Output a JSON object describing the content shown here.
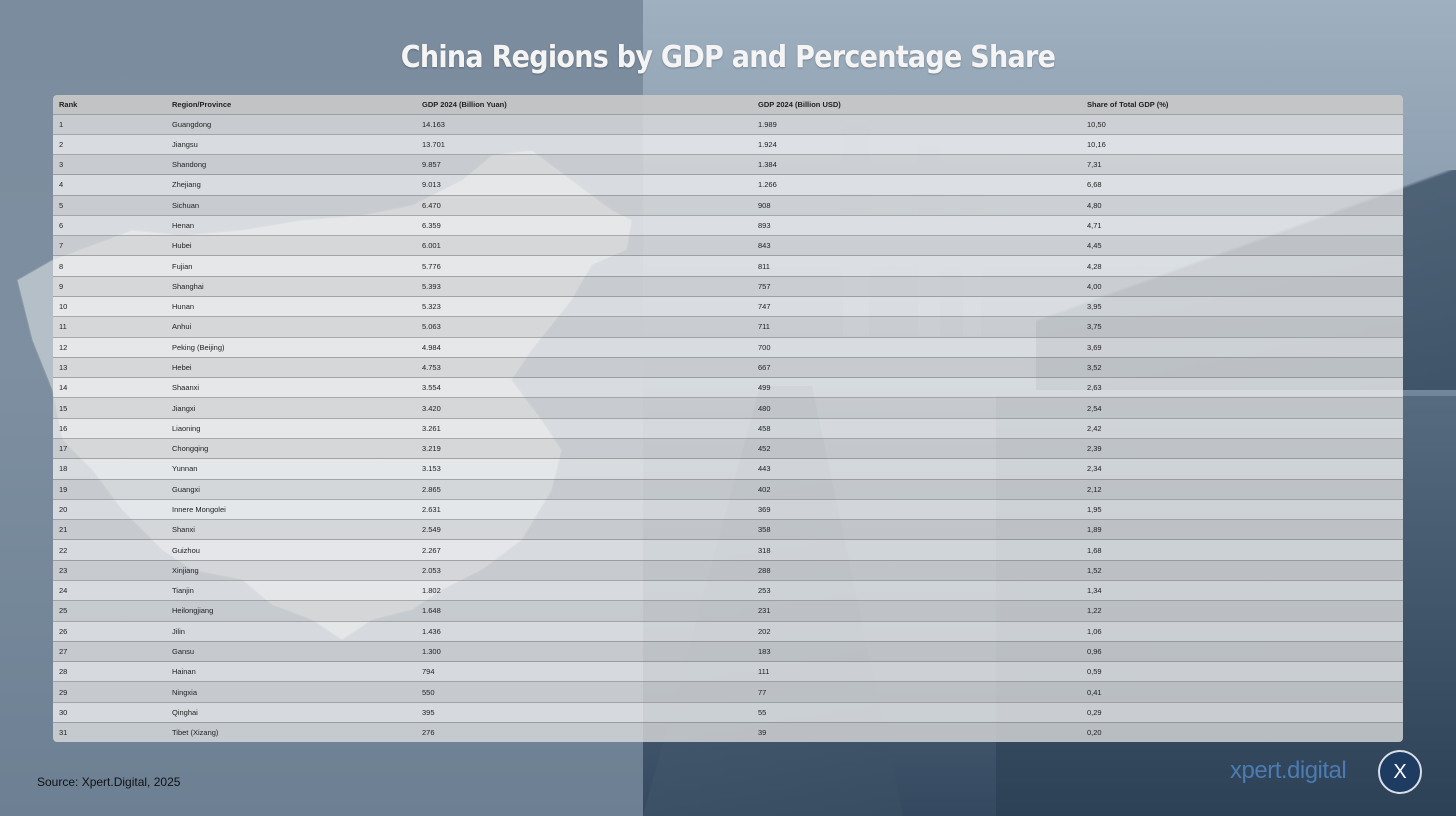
{
  "title": "China Regions by GDP and Percentage Share",
  "table": {
    "headers": [
      "Rank",
      "Region/Province",
      "GDP 2024 (Billion Yuan)",
      "GDP 2024 (Billion USD)",
      "Share of Total GDP (%)"
    ],
    "rows": [
      [
        "1",
        "Guangdong",
        "14.163",
        "1.989",
        "10,50"
      ],
      [
        "2",
        "Jiangsu",
        "13.701",
        "1.924",
        "10,16"
      ],
      [
        "3",
        "Shandong",
        "9.857",
        "1.384",
        "7,31"
      ],
      [
        "4",
        "Zhejiang",
        "9.013",
        "1.266",
        "6,68"
      ],
      [
        "5",
        "Sichuan",
        "6.470",
        "908",
        "4,80"
      ],
      [
        "6",
        "Henan",
        "6.359",
        "893",
        "4,71"
      ],
      [
        "7",
        "Hubei",
        "6.001",
        "843",
        "4,45"
      ],
      [
        "8",
        "Fujian",
        "5.776",
        "811",
        "4,28"
      ],
      [
        "9",
        "Shanghai",
        "5.393",
        "757",
        "4,00"
      ],
      [
        "10",
        "Hunan",
        "5.323",
        "747",
        "3,95"
      ],
      [
        "11",
        "Anhui",
        "5.063",
        "711",
        "3,75"
      ],
      [
        "12",
        "Peking (Beijing)",
        "4.984",
        "700",
        "3,69"
      ],
      [
        "13",
        "Hebei",
        "4.753",
        "667",
        "3,52"
      ],
      [
        "14",
        "Shaanxi",
        "3.554",
        "499",
        "2,63"
      ],
      [
        "15",
        "Jiangxi",
        "3.420",
        "480",
        "2,54"
      ],
      [
        "16",
        "Liaoning",
        "3.261",
        "458",
        "2,42"
      ],
      [
        "17",
        "Chongqing",
        "3.219",
        "452",
        "2,39"
      ],
      [
        "18",
        "Yunnan",
        "3.153",
        "443",
        "2,34"
      ],
      [
        "19",
        "Guangxi",
        "2.865",
        "402",
        "2,12"
      ],
      [
        "20",
        "Innere Mongolei",
        "2.631",
        "369",
        "1,95"
      ],
      [
        "21",
        "Shanxi",
        "2.549",
        "358",
        "1,89"
      ],
      [
        "22",
        "Guizhou",
        "2.267",
        "318",
        "1,68"
      ],
      [
        "23",
        "Xinjiang",
        "2.053",
        "288",
        "1,52"
      ],
      [
        "24",
        "Tianjin",
        "1.802",
        "253",
        "1,34"
      ],
      [
        "25",
        "Heilongjiang",
        "1.648",
        "231",
        "1,22"
      ],
      [
        "26",
        "Jilin",
        "1.436",
        "202",
        "1,06"
      ],
      [
        "27",
        "Gansu",
        "1.300",
        "183",
        "0,96"
      ],
      [
        "28",
        "Hainan",
        "794",
        "111",
        "0,59"
      ],
      [
        "29",
        "Ningxia",
        "550",
        "77",
        "0,41"
      ],
      [
        "30",
        "Qinghai",
        "395",
        "55",
        "0,29"
      ],
      [
        "31",
        "Tibet (Xizang)",
        "276",
        "39",
        "0,20"
      ]
    ]
  },
  "source": "Source: Xpert.Digital, 2025",
  "brand": {
    "name": "xpert.digital",
    "logo_letter": "X",
    "logo_color": "#1e3c62",
    "text_color": "#4b7bb0"
  }
}
